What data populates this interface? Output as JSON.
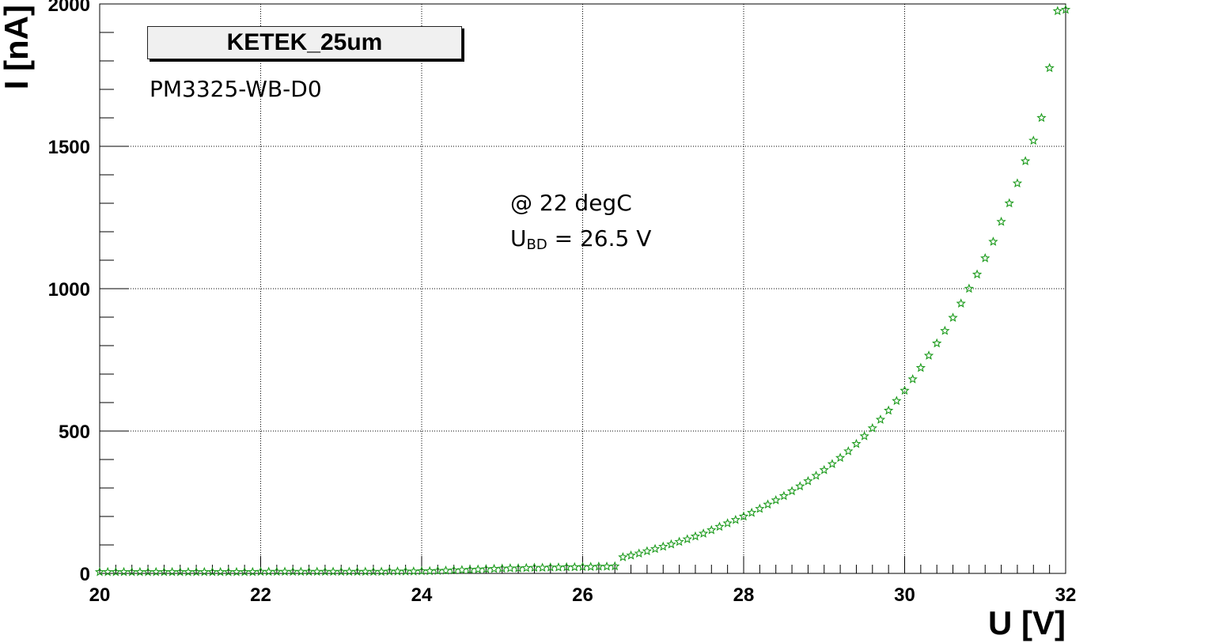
{
  "chart_data": {
    "type": "scatter",
    "title": "KETEK_25um",
    "subtitle": "PM3325-WB-D0",
    "annotations": {
      "temperature": "@ 22 degC",
      "breakdown_prefix": "U",
      "breakdown_sub": "BD",
      "breakdown_value": " = 26.5 V"
    },
    "xlabel": "U [V]",
    "ylabel": "I [nA]",
    "xlim": [
      20,
      32
    ],
    "ylim": [
      0,
      2000
    ],
    "x_ticks": [
      "20",
      "22",
      "24",
      "26",
      "28",
      "30",
      "32"
    ],
    "y_ticks": [
      "0",
      "500",
      "1000",
      "1500",
      "2000"
    ],
    "grid": true,
    "marker": "open-star",
    "color": "#1a9a1a",
    "series": [
      {
        "x": [
          20.0,
          20.1,
          20.2,
          20.3,
          20.4,
          20.5,
          20.6,
          20.7,
          20.8,
          20.9,
          21.0,
          21.1,
          21.2,
          21.3,
          21.4,
          21.5,
          21.6,
          21.7,
          21.8,
          21.9,
          22.0,
          22.1,
          22.2,
          22.3,
          22.4,
          22.5,
          22.6,
          22.7,
          22.8,
          22.9,
          23.0,
          23.1,
          23.2,
          23.3,
          23.4,
          23.5,
          23.6,
          23.7,
          23.8,
          23.9,
          24.0,
          24.1,
          24.2,
          24.3,
          24.4,
          24.5,
          24.6,
          24.7,
          24.8,
          24.9,
          25.0,
          25.1,
          25.2,
          25.3,
          25.4,
          25.5,
          25.6,
          25.7,
          25.8,
          25.9,
          26.0,
          26.1,
          26.2,
          26.3,
          26.4,
          26.5,
          26.6,
          26.7,
          26.8,
          26.9,
          27.0,
          27.1,
          27.2,
          27.3,
          27.4,
          27.5,
          27.6,
          27.7,
          27.8,
          27.9,
          28.0,
          28.1,
          28.2,
          28.3,
          28.4,
          28.5,
          28.6,
          28.7,
          28.8,
          28.9,
          29.0,
          29.1,
          29.2,
          29.3,
          29.4,
          29.5,
          29.6,
          29.7,
          29.8,
          29.9,
          30.0,
          30.1,
          30.2,
          30.3,
          30.4,
          30.5,
          30.6,
          30.7,
          30.8,
          30.9,
          31.0,
          31.1,
          31.2,
          31.3,
          31.4,
          31.5,
          31.6,
          31.7,
          31.8,
          31.9,
          32.0
        ],
        "y": [
          5,
          5,
          5,
          5,
          5,
          5,
          5,
          5,
          5,
          5,
          5,
          5,
          5,
          5,
          5,
          5,
          5,
          5,
          5,
          5,
          6,
          6,
          6,
          6,
          6,
          6,
          6,
          6,
          6,
          6,
          6,
          6,
          6,
          6,
          6,
          6,
          7,
          7,
          7,
          7,
          8,
          8,
          9,
          10,
          11,
          12,
          13,
          14,
          15,
          16,
          17,
          18,
          18,
          19,
          20,
          20,
          21,
          21,
          22,
          22,
          23,
          23,
          24,
          24,
          25,
          57,
          63,
          70,
          78,
          86,
          94,
          102,
          111,
          120,
          130,
          140,
          152,
          164,
          176,
          188,
          200,
          213,
          227,
          242,
          257,
          272,
          289,
          306,
          324,
          343,
          363,
          384,
          406,
          429,
          455,
          482,
          510,
          540,
          572,
          606,
          642,
          682,
          722,
          765,
          808,
          852,
          898,
          948,
          1000,
          1050,
          1107,
          1165,
          1235,
          1300,
          1370,
          1448,
          1520,
          1600,
          1775,
          1975,
          1980
        ]
      }
    ]
  }
}
